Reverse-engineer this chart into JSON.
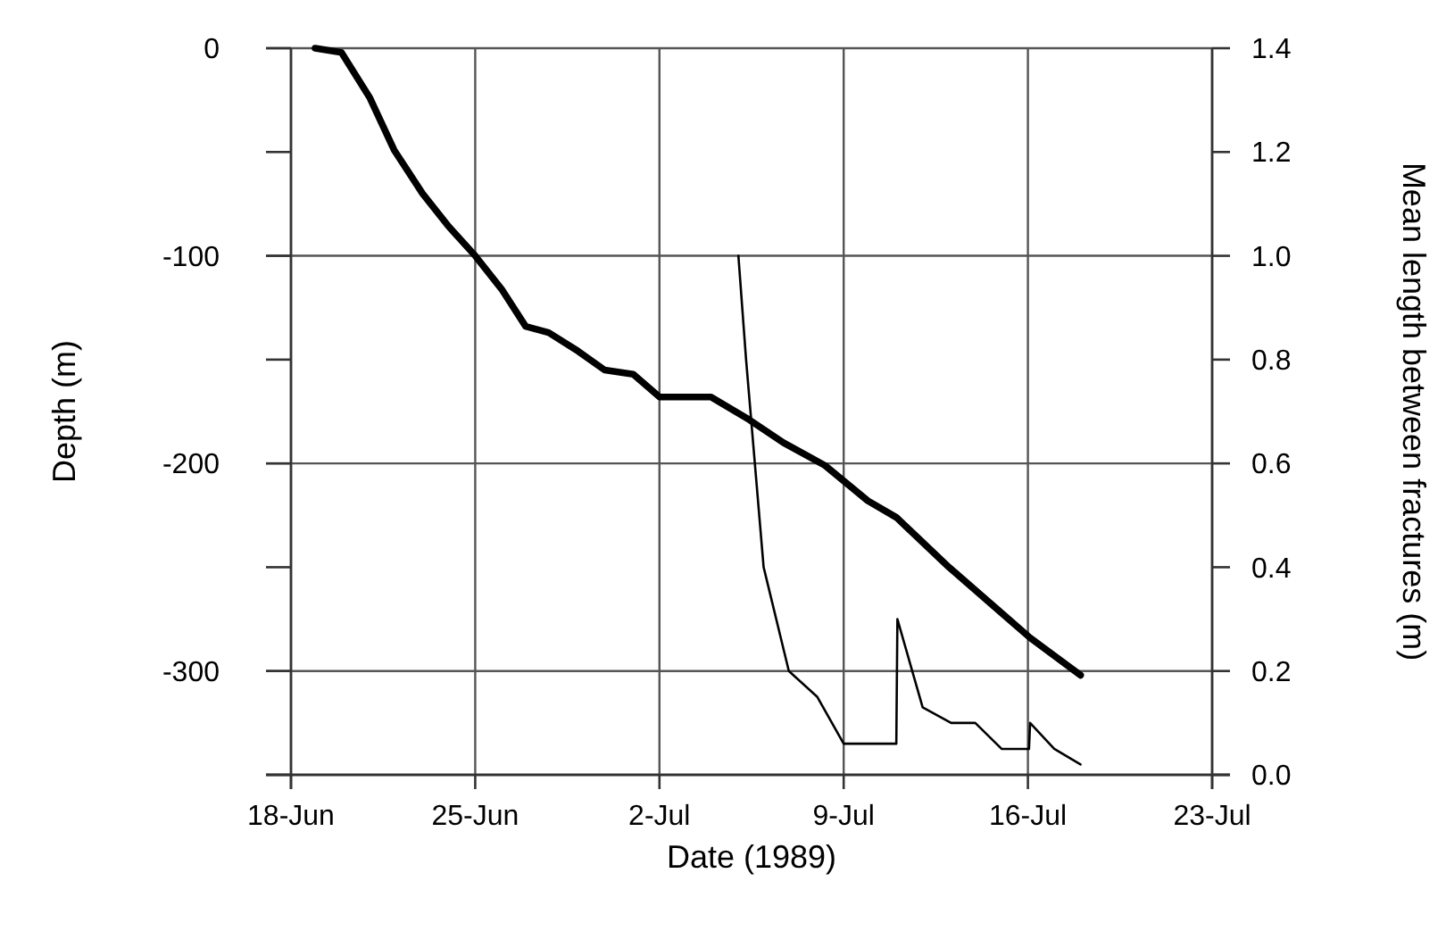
{
  "chart_data": {
    "type": "line",
    "xlabel": "Date (1989)",
    "ylabel": "Depth (m)",
    "y2label": "Mean length between fractures (m)",
    "xlim": [
      "1989-06-18",
      "1989-07-23"
    ],
    "xticks": [
      {
        "value": "1989-06-18",
        "label": "18-Jun"
      },
      {
        "value": "1989-06-25",
        "label": "25-Jun"
      },
      {
        "value": "1989-07-02",
        "label": "2-Jul"
      },
      {
        "value": "1989-07-09",
        "label": "9-Jul"
      },
      {
        "value": "1989-07-16",
        "label": "16-Jul"
      },
      {
        "value": "1989-07-23",
        "label": "23-Jul"
      }
    ],
    "ylim": [
      -350,
      0
    ],
    "yticks": [
      0,
      {
        "value": -50,
        "label": null
      },
      -100,
      {
        "value": -150,
        "label": null
      },
      -200,
      {
        "value": -250,
        "label": null
      },
      -300,
      {
        "value": -350,
        "label": null
      }
    ],
    "y2lim": [
      0,
      1.4
    ],
    "y2ticks": [
      {
        "value": 0,
        "label": "0.0"
      },
      0.2,
      0.4,
      0.6,
      0.8,
      {
        "value": 1,
        "label": "1.0"
      },
      1.2,
      1.4
    ],
    "grid": true,
    "marker": "none",
    "line_style": "solid",
    "series": [
      {
        "color": "#000000",
        "x": [
          "1989-06-18T22:00",
          "1989-06-19T22:00",
          "1989-06-21",
          "1989-06-21T22:00",
          "1989-06-23",
          "1989-06-24",
          "1989-06-25",
          "1989-06-26",
          "1989-06-26T22:00",
          "1989-06-27T19:00",
          "1989-06-28T22:00",
          "1989-06-29T22:00",
          "1989-07-01",
          "1989-07-02",
          "1989-07-03T23:00",
          "1989-07-05T10:00",
          "1989-07-06T17:00",
          "1989-07-08T07:00",
          "1989-07-09T22:00",
          "1989-07-11",
          "1989-07-13",
          "1989-07-15T02:00",
          "1989-07-16T02:00",
          "1989-07-18"
        ],
        "values": [
          0,
          -2,
          -24,
          -49,
          -70,
          -86,
          -100,
          -116,
          -134,
          -137,
          -146,
          -155,
          -157,
          -168,
          -168,
          -179,
          -190,
          -201,
          -218,
          -226,
          -250,
          -273,
          -284,
          -302
        ]
      },
      {
        "color": "#000000",
        "axis": "y2",
        "x": [
          "1989-07-05",
          "1989-07-05T07:00",
          "1989-07-05T23:00",
          "1989-07-06T22:00",
          "1989-07-08",
          "1989-07-09",
          "1989-07-11",
          "1989-07-11T01:00",
          "1989-07-12",
          "1989-07-13T02:00",
          "1989-07-14",
          "1989-07-15",
          "1989-07-16T01:00",
          "1989-07-16T02:00",
          "1989-07-17",
          "1989-07-18"
        ],
        "values": [
          1.0,
          0.8,
          0.4,
          0.2,
          0.15,
          0.06,
          0.06,
          0.3,
          0.13,
          0.1,
          0.1,
          0.05,
          0.05,
          0.1,
          0.05,
          0.02
        ]
      }
    ]
  }
}
